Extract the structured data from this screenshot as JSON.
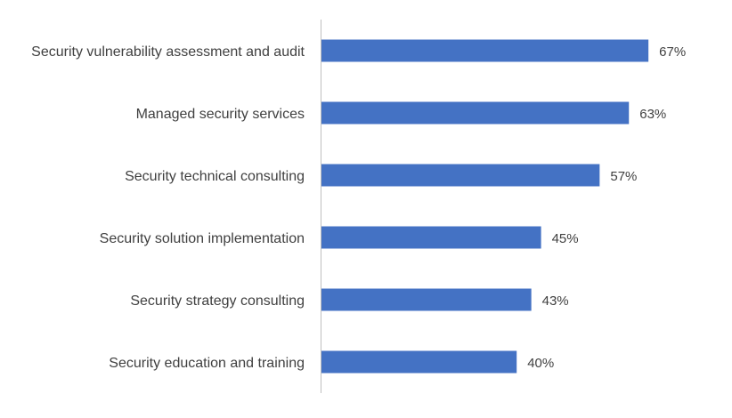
{
  "chart_data": {
    "type": "bar",
    "orientation": "horizontal",
    "title": "",
    "xlabel": "",
    "ylabel": "",
    "categories": [
      "Security vulnerability assessment and audit",
      "Managed security services",
      "Security technical consulting",
      "Security solution implementation",
      "Security strategy consulting",
      "Security education and training"
    ],
    "values": [
      67,
      63,
      57,
      45,
      43,
      40
    ],
    "value_labels": [
      "67%",
      "63%",
      "57%",
      "45%",
      "43%",
      "40%"
    ],
    "xlim": [
      0,
      100
    ],
    "grid": false,
    "legend": "none",
    "colors": {
      "bar": "#4472C4",
      "axis": "#BFBFBF",
      "text": "#404040"
    }
  }
}
